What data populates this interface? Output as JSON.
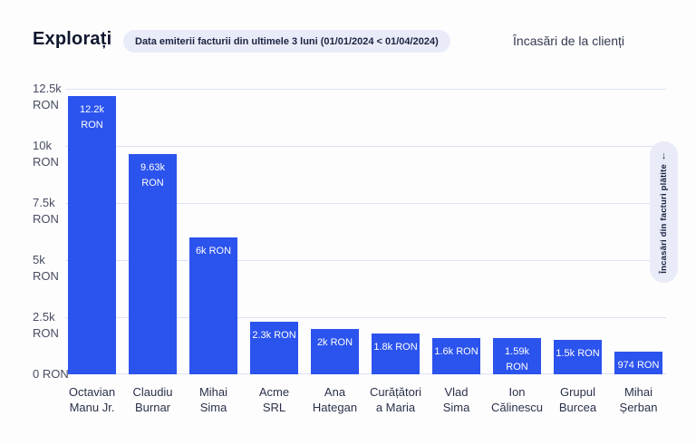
{
  "header": {
    "title": "Explorați",
    "filter_badge": "Data emiterii facturii din ultimele 3 luni (01/01/2024 < 01/04/2024)",
    "chart_title": "Încasări de la clienți"
  },
  "side_control": {
    "label": "Încasări din facturi plătite",
    "arrow": "↓"
  },
  "chart_data": {
    "type": "bar",
    "title": "Încasări de la clienți",
    "xlabel": "",
    "ylabel": "RON",
    "ylim": [
      0,
      12500
    ],
    "grid": true,
    "legend": false,
    "categories": [
      "Octavian Manu Jr.",
      "Claudiu Burnar",
      "Mihai Sima",
      "Acme SRL",
      "Ana Hategan",
      "Curățătoria Maria",
      "Vlad Sima",
      "Ion Călinescu",
      "Grupul Burcea",
      "Mihai Șerban"
    ],
    "values": [
      12200,
      9630,
      6000,
      2300,
      2000,
      1800,
      1600,
      1590,
      1500,
      974
    ],
    "bar_labels": [
      "12.2k RON",
      "9.63k RON",
      "6k RON",
      "2.3k RON",
      "2k RON",
      "1.8k RON",
      "1.6k RON",
      "1.59k RON",
      "1.5k RON",
      "974 RON"
    ],
    "y_tick_labels": [
      "12.5k RON",
      "10k RON",
      "7.5k RON",
      "5k RON",
      "2.5k RON",
      "0 RON"
    ],
    "y_tick_values": [
      12500,
      10000,
      7500,
      5000,
      2500,
      0
    ],
    "colors": {
      "bar": "#2b53ed",
      "grid": "#dce2f7",
      "bar_label": "#ffffff"
    }
  }
}
